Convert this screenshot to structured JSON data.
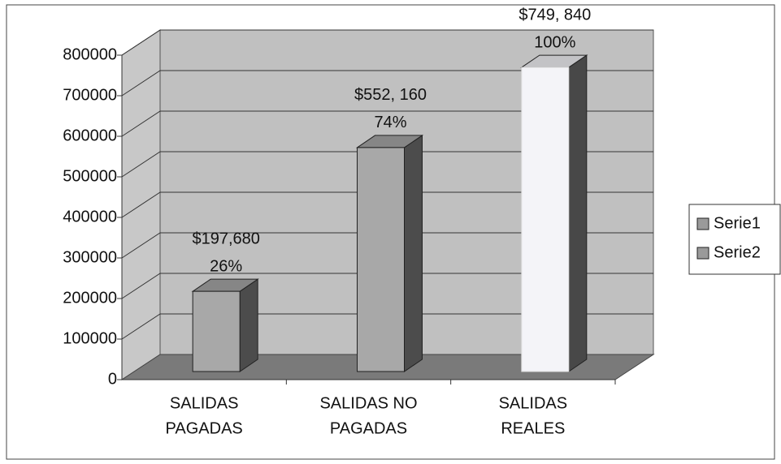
{
  "chart_data": {
    "type": "bar3d",
    "categories": [
      [
        "SALIDAS",
        "PAGADAS"
      ],
      [
        "SALIDAS NO",
        "PAGADAS"
      ],
      [
        "SALIDAS",
        "REALES"
      ]
    ],
    "values": [
      197680,
      552160,
      749840
    ],
    "value_labels": [
      "$197,680",
      "$552, 160",
      "$749, 840"
    ],
    "annotations": [
      "26%",
      "74%",
      "100%"
    ],
    "colors": [
      "#a8a8a8",
      "#a8a8a8",
      "#f4f4f8"
    ],
    "legend": [
      "Serie1",
      "Serie2"
    ],
    "legend_color": "#9a9a9a",
    "legend_position": "right",
    "ylim": [
      0,
      800000
    ],
    "yticks": [
      0,
      100000,
      200000,
      300000,
      400000,
      500000,
      600000,
      700000,
      800000
    ],
    "grid": true
  }
}
